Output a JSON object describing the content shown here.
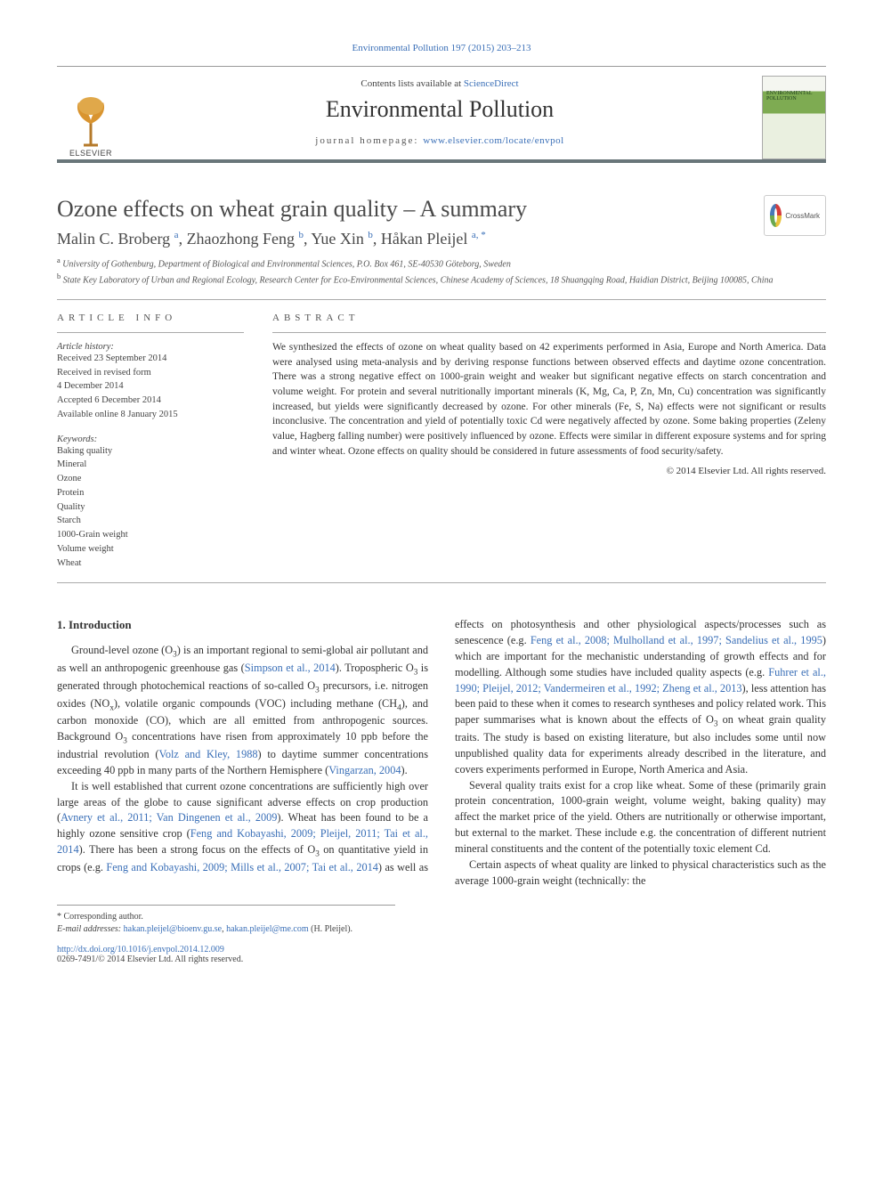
{
  "header": {
    "citation": "Environmental Pollution 197 (2015) 203–213",
    "contents_prefix": "Contents lists available at ",
    "contents_link": "ScienceDirect",
    "journal_name": "Environmental Pollution",
    "homepage_prefix": "journal homepage: ",
    "homepage_link": "www.elsevier.com/locate/envpol",
    "elsevier_word": "ELSEVIER",
    "cover_title": "ENVIRONMENTAL POLLUTION",
    "crossmark": "CrossMark"
  },
  "article": {
    "title": "Ozone effects on wheat grain quality – A summary",
    "authors_html": "Malin C. Broberg <sup>a</sup>, Zhaozhong Feng <sup>b</sup>, Yue Xin <sup>b</sup>, Håkan Pleijel <sup>a, *</sup>",
    "affiliations": [
      {
        "sup": "a",
        "text": "University of Gothenburg, Department of Biological and Environmental Sciences, P.O. Box 461, SE-40530 Göteborg, Sweden"
      },
      {
        "sup": "b",
        "text": "State Key Laboratory of Urban and Regional Ecology, Research Center for Eco-Environmental Sciences, Chinese Academy of Sciences, 18 Shuangqing Road, Haidian District, Beijing 100085, China"
      }
    ]
  },
  "article_info": {
    "header": "ARTICLE INFO",
    "history_label": "Article history:",
    "history": [
      "Received 23 September 2014",
      "Received in revised form",
      "4 December 2014",
      "Accepted 6 December 2014",
      "Available online 8 January 2015"
    ],
    "keywords_label": "Keywords:",
    "keywords": [
      "Baking quality",
      "Mineral",
      "Ozone",
      "Protein",
      "Quality",
      "Starch",
      "1000-Grain weight",
      "Volume weight",
      "Wheat"
    ]
  },
  "abstract": {
    "header": "ABSTRACT",
    "text": "We synthesized the effects of ozone on wheat quality based on 42 experiments performed in Asia, Europe and North America. Data were analysed using meta-analysis and by deriving response functions between observed effects and daytime ozone concentration. There was a strong negative effect on 1000-grain weight and weaker but significant negative effects on starch concentration and volume weight. For protein and several nutritionally important minerals (K, Mg, Ca, P, Zn, Mn, Cu) concentration was significantly increased, but yields were significantly decreased by ozone. For other minerals (Fe, S, Na) effects were not significant or results inconclusive. The concentration and yield of potentially toxic Cd were negatively affected by ozone. Some baking properties (Zeleny value, Hagberg falling number) were positively influenced by ozone. Effects were similar in different exposure systems and for spring and winter wheat. Ozone effects on quality should be considered in future assessments of food security/safety.",
    "copyright": "© 2014 Elsevier Ltd. All rights reserved."
  },
  "body": {
    "section_heading": "1. Introduction",
    "p1_a": "Ground-level ozone (O",
    "p1_b": ") is an important regional to semi-global air pollutant and as well an anthropogenic greenhouse gas (",
    "p1_ref1": "Simpson et al., 2014",
    "p1_c": "). Tropospheric O",
    "p1_d": " is generated through photochemical reactions of so-called O",
    "p1_e": " precursors, i.e. nitrogen oxides (NO",
    "p1_f": "), volatile organic compounds (VOC) including methane (CH",
    "p1_g": "), and carbon monoxide (CO), which are all emitted from anthropogenic sources. Background O",
    "p1_h": " concentrations have risen from approximately 10 ppb before the industrial revolution (",
    "p1_ref2": "Volz and Kley, 1988",
    "p1_i": ") to daytime summer concentrations exceeding 40 ppb in many parts of the Northern Hemisphere (",
    "p1_ref3": "Vingarzan, 2004",
    "p1_j": ").",
    "p2_a": "It is well established that current ozone concentrations are sufficiently high over large areas of the globe to cause significant adverse effects on crop production (",
    "p2_ref1": "Avnery et al., 2011; Van Dingenen et al., 2009",
    "p2_b": "). Wheat has been found to be a highly ozone sensitive crop (",
    "p2_ref2": "Feng and Kobayashi, 2009; Pleijel, 2011; Tai et al., 2014",
    "p2_c": "). There has been a strong focus on the effects of O",
    "p2_d": " on ",
    "p3_a": "quantitative yield in crops (e.g. ",
    "p3_ref1": "Feng and Kobayashi, 2009; Mills et al., 2007; Tai et al., 2014",
    "p3_b": ") as well as effects on photosynthesis and other physiological aspects/processes such as senescence (e.g. ",
    "p3_ref2": "Feng et al., 2008; Mulholland et al., 1997; Sandelius et al., 1995",
    "p3_c": ") which are important for the mechanistic understanding of growth effects and for modelling. Although some studies have included quality aspects (e.g. ",
    "p3_ref3": "Fuhrer et al., 1990; Pleijel, 2012; Vandermeiren et al., 1992; Zheng et al., 2013",
    "p3_d": "), less attention has been paid to these when it comes to research syntheses and policy related work. This paper summarises what is known about the effects of O",
    "p3_e": " on wheat grain quality traits. The study is based on existing literature, but also includes some until now unpublished quality data for experiments already described in the literature, and covers experiments performed in Europe, North America and Asia.",
    "p4": "Several quality traits exist for a crop like wheat. Some of these (primarily grain protein concentration, 1000-grain weight, volume weight, baking quality) may affect the market price of the yield. Others are nutritionally or otherwise important, but external to the market. These include e.g. the concentration of different nutrient mineral constituents and the content of the potentially toxic element Cd.",
    "p5": "Certain aspects of wheat quality are linked to physical characteristics such as the average 1000-grain weight (technically: the"
  },
  "footnotes": {
    "corresponding": "* Corresponding author.",
    "emails_label": "E-mail addresses: ",
    "email1": "hakan.pleijel@bioenv.gu.se",
    "email_sep": ", ",
    "email2": "hakan.pleijel@me.com",
    "email_tail": " (H. Pleijel)."
  },
  "doi": {
    "link": "http://dx.doi.org/10.1016/j.envpol.2014.12.009",
    "issn_line": "0269-7491/© 2014 Elsevier Ltd. All rights reserved."
  },
  "colors": {
    "link": "#3a6fb7",
    "rule": "#69767a",
    "text": "#333333"
  }
}
